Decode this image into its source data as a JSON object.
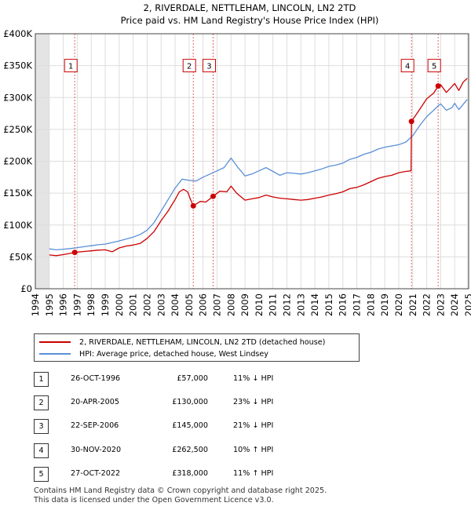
{
  "chart_data": {
    "type": "line",
    "title": "2, RIVERDALE, NETTLEHAM, LINCOLN, LN2 2TD",
    "subtitle": "Price paid vs. HM Land Registry's House Price Index (HPI)",
    "xlim": [
      1994,
      2025
    ],
    "ylim": [
      0,
      400000
    ],
    "y_ticks": [
      {
        "value": 0,
        "label": "£0"
      },
      {
        "value": 50000,
        "label": "£50K"
      },
      {
        "value": 100000,
        "label": "£100K"
      },
      {
        "value": 150000,
        "label": "£150K"
      },
      {
        "value": 200000,
        "label": "£200K"
      },
      {
        "value": 250000,
        "label": "£250K"
      },
      {
        "value": 300000,
        "label": "£300K"
      },
      {
        "value": 350000,
        "label": "£350K"
      },
      {
        "value": 400000,
        "label": "£400K"
      }
    ],
    "x_ticks": [
      "1994",
      "1995",
      "1996",
      "1997",
      "1998",
      "1999",
      "2000",
      "2001",
      "2002",
      "2003",
      "2004",
      "2005",
      "2006",
      "2007",
      "2008",
      "2009",
      "2010",
      "2011",
      "2012",
      "2013",
      "2014",
      "2015",
      "2016",
      "2017",
      "2018",
      "2019",
      "2020",
      "2021",
      "2022",
      "2023",
      "2024",
      "2025"
    ],
    "grid": true,
    "series": [
      {
        "name": "2, RIVERDALE, NETTLEHAM, LINCOLN, LN2 2TD (detached house)",
        "color": "#cc0000",
        "points": [
          [
            1995.0,
            53000
          ],
          [
            1995.5,
            52000
          ],
          [
            1996.0,
            53500
          ],
          [
            1996.5,
            55500
          ],
          [
            1996.82,
            57000
          ],
          [
            1997.5,
            58500
          ],
          [
            1998.0,
            59500
          ],
          [
            1998.5,
            60500
          ],
          [
            1999.0,
            61000
          ],
          [
            1999.5,
            58000
          ],
          [
            2000.0,
            64000
          ],
          [
            2000.5,
            67000
          ],
          [
            2001.0,
            68500
          ],
          [
            2001.5,
            71000
          ],
          [
            2002.0,
            79000
          ],
          [
            2002.5,
            90000
          ],
          [
            2003.0,
            107000
          ],
          [
            2003.5,
            122000
          ],
          [
            2004.0,
            140000
          ],
          [
            2004.3,
            152000
          ],
          [
            2004.6,
            156000
          ],
          [
            2004.9,
            152000
          ],
          [
            2005.1,
            140000
          ],
          [
            2005.3,
            130000
          ],
          [
            2005.8,
            137000
          ],
          [
            2006.2,
            136000
          ],
          [
            2006.72,
            145000
          ],
          [
            2007.2,
            153000
          ],
          [
            2007.7,
            152000
          ],
          [
            2008.0,
            161000
          ],
          [
            2008.4,
            150000
          ],
          [
            2009.0,
            139000
          ],
          [
            2009.5,
            141000
          ],
          [
            2010.0,
            143000
          ],
          [
            2010.5,
            147000
          ],
          [
            2011.0,
            144000
          ],
          [
            2011.5,
            142000
          ],
          [
            2012.0,
            141000
          ],
          [
            2012.5,
            140000
          ],
          [
            2013.0,
            139000
          ],
          [
            2013.5,
            140000
          ],
          [
            2014.0,
            142000
          ],
          [
            2014.5,
            144000
          ],
          [
            2015.0,
            147000
          ],
          [
            2015.5,
            149000
          ],
          [
            2016.0,
            152000
          ],
          [
            2016.5,
            157000
          ],
          [
            2017.0,
            159000
          ],
          [
            2017.5,
            163000
          ],
          [
            2018.0,
            168000
          ],
          [
            2018.5,
            173000
          ],
          [
            2019.0,
            176000
          ],
          [
            2019.5,
            178000
          ],
          [
            2020.0,
            182000
          ],
          [
            2020.5,
            184000
          ],
          [
            2020.88,
            185000
          ],
          [
            2020.91,
            262500
          ],
          [
            2021.3,
            275000
          ],
          [
            2021.7,
            288000
          ],
          [
            2022.0,
            298000
          ],
          [
            2022.5,
            307000
          ],
          [
            2022.82,
            318000
          ],
          [
            2023.0,
            320000
          ],
          [
            2023.4,
            308000
          ],
          [
            2023.8,
            317000
          ],
          [
            2024.0,
            322000
          ],
          [
            2024.3,
            311000
          ],
          [
            2024.6,
            324000
          ],
          [
            2024.9,
            330000
          ]
        ]
      },
      {
        "name": "HPI: Average price, detached house, West Lindsey",
        "color": "#5b8fd6",
        "points": [
          [
            1995.0,
            62500
          ],
          [
            1995.5,
            61000
          ],
          [
            1996.0,
            62000
          ],
          [
            1996.5,
            63000
          ],
          [
            1997.0,
            64500
          ],
          [
            1997.5,
            66000
          ],
          [
            1998.0,
            67500
          ],
          [
            1998.5,
            69000
          ],
          [
            1999.0,
            70000
          ],
          [
            1999.5,
            72500
          ],
          [
            2000.0,
            75000
          ],
          [
            2000.5,
            78000
          ],
          [
            2001.0,
            81000
          ],
          [
            2001.5,
            85000
          ],
          [
            2002.0,
            92000
          ],
          [
            2002.5,
            104000
          ],
          [
            2003.0,
            122000
          ],
          [
            2003.5,
            140000
          ],
          [
            2004.0,
            158000
          ],
          [
            2004.5,
            172000
          ],
          [
            2005.0,
            170000
          ],
          [
            2005.5,
            169000
          ],
          [
            2006.0,
            175000
          ],
          [
            2006.5,
            180000
          ],
          [
            2007.0,
            185000
          ],
          [
            2007.5,
            190000
          ],
          [
            2008.0,
            205000
          ],
          [
            2008.5,
            190000
          ],
          [
            2009.0,
            177000
          ],
          [
            2009.5,
            180000
          ],
          [
            2010.0,
            185000
          ],
          [
            2010.5,
            190000
          ],
          [
            2011.0,
            184000
          ],
          [
            2011.5,
            178000
          ],
          [
            2012.0,
            182000
          ],
          [
            2012.5,
            181000
          ],
          [
            2013.0,
            180000
          ],
          [
            2013.5,
            182000
          ],
          [
            2014.0,
            185000
          ],
          [
            2014.5,
            188000
          ],
          [
            2015.0,
            192000
          ],
          [
            2015.5,
            194000
          ],
          [
            2016.0,
            197000
          ],
          [
            2016.5,
            203000
          ],
          [
            2017.0,
            206000
          ],
          [
            2017.5,
            211000
          ],
          [
            2018.0,
            214000
          ],
          [
            2018.5,
            219000
          ],
          [
            2019.0,
            222000
          ],
          [
            2019.5,
            224000
          ],
          [
            2020.0,
            226000
          ],
          [
            2020.5,
            230000
          ],
          [
            2021.0,
            240000
          ],
          [
            2021.5,
            256000
          ],
          [
            2022.0,
            270000
          ],
          [
            2022.5,
            280000
          ],
          [
            2022.82,
            287000
          ],
          [
            2023.0,
            290000
          ],
          [
            2023.4,
            280000
          ],
          [
            2023.8,
            284000
          ],
          [
            2024.0,
            291000
          ],
          [
            2024.3,
            281000
          ],
          [
            2024.6,
            289000
          ],
          [
            2024.9,
            297000
          ]
        ]
      }
    ],
    "sales": [
      {
        "num": "1",
        "year": 1996.82,
        "price": 57000
      },
      {
        "num": "2",
        "year": 2005.3,
        "price": 130000
      },
      {
        "num": "3",
        "year": 2006.72,
        "price": 145000
      },
      {
        "num": "4",
        "year": 2020.91,
        "price": 262500
      },
      {
        "num": "5",
        "year": 2022.82,
        "price": 318000
      }
    ],
    "marker_label_value": 350000,
    "shaded_spans": [
      [
        1994,
        1995
      ],
      [
        2024.9,
        2025
      ]
    ]
  },
  "legend": {
    "property_label": "2, RIVERDALE, NETTLEHAM, LINCOLN, LN2 2TD (detached house)",
    "property_color": "#cc0000",
    "hpi_label": "HPI: Average price, detached house, West Lindsey",
    "hpi_color": "#5b8fd6"
  },
  "sales_table": [
    {
      "num": "1",
      "date": "26-OCT-1996",
      "price": "£57,000",
      "delta": "11% ↓ HPI"
    },
    {
      "num": "2",
      "date": "20-APR-2005",
      "price": "£130,000",
      "delta": "23% ↓ HPI"
    },
    {
      "num": "3",
      "date": "22-SEP-2006",
      "price": "£145,000",
      "delta": "21% ↓ HPI"
    },
    {
      "num": "4",
      "date": "30-NOV-2020",
      "price": "£262,500",
      "delta": "10% ↑ HPI"
    },
    {
      "num": "5",
      "date": "27-OCT-2022",
      "price": "£318,000",
      "delta": "11% ↑ HPI"
    }
  ],
  "footer": {
    "line1": "Contains HM Land Registry data © Crown copyright and database right 2025.",
    "line2": "This data is licensed under the Open Government Licence v3.0."
  }
}
